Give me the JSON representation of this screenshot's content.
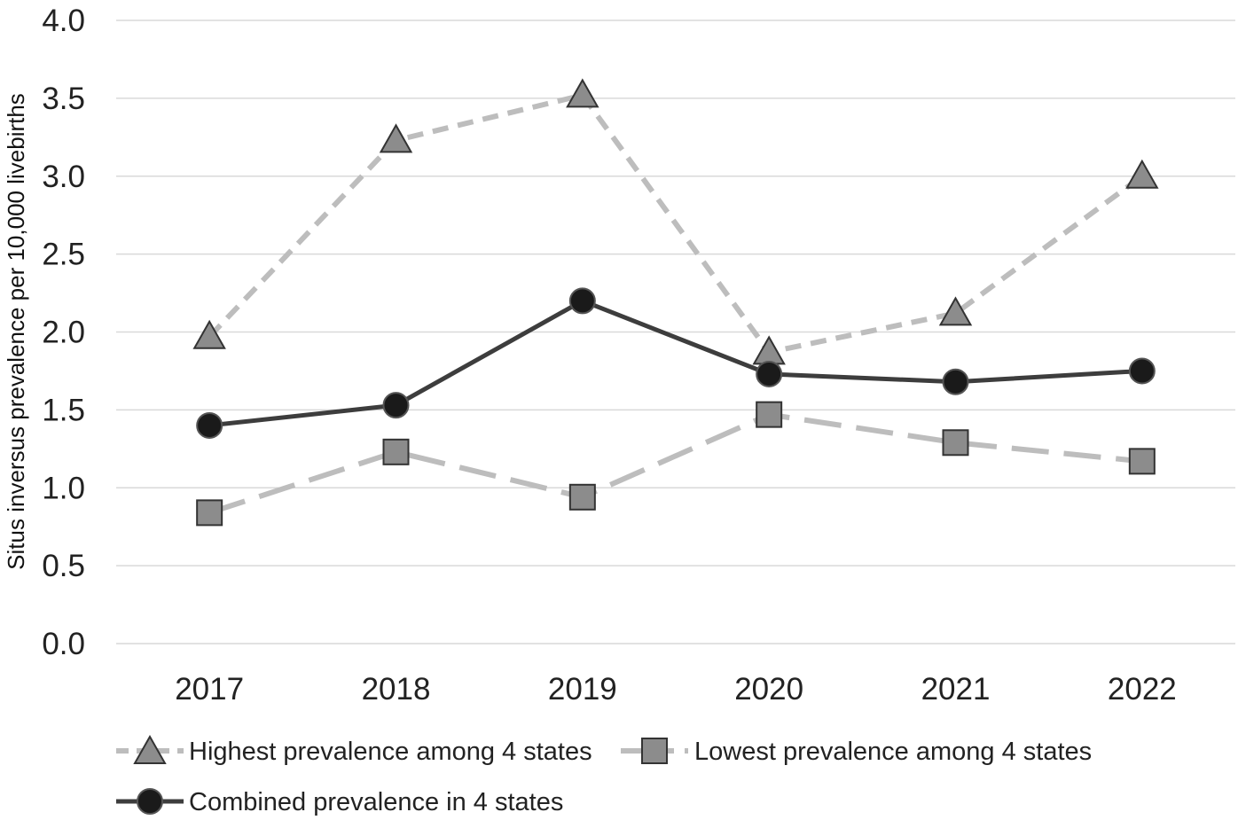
{
  "chart_data": {
    "type": "line",
    "title": "",
    "xlabel": "",
    "ylabel": "Situs inversus prevalence per 10,000 livebirths",
    "categories": [
      "2017",
      "2018",
      "2019",
      "2020",
      "2021",
      "2022"
    ],
    "ylim": [
      0.0,
      4.0
    ],
    "yticks": [
      "0.0",
      "0.5",
      "1.0",
      "1.5",
      "2.0",
      "2.5",
      "3.0",
      "3.5",
      "4.0"
    ],
    "grid": true,
    "legend_position": "bottom",
    "series": [
      {
        "name": "Highest prevalence among 4 states",
        "values": [
          1.97,
          3.23,
          3.52,
          1.87,
          2.12,
          3.0
        ],
        "marker": "triangle",
        "line_style": "dashed",
        "line_color": "#bdbdbd",
        "marker_fill": "#8c8c8c",
        "marker_stroke": "#333333"
      },
      {
        "name": "Lowest prevalence among 4 states",
        "values": [
          0.84,
          1.23,
          0.94,
          1.47,
          1.29,
          1.17
        ],
        "marker": "square",
        "line_style": "long-dashed",
        "line_color": "#bdbdbd",
        "marker_fill": "#8c8c8c",
        "marker_stroke": "#333333"
      },
      {
        "name": "Combined prevalence in 4 states",
        "values": [
          1.4,
          1.53,
          2.2,
          1.73,
          1.68,
          1.75
        ],
        "marker": "circle",
        "line_style": "solid",
        "line_color": "#3d3d3d",
        "marker_fill": "#1a1a1a",
        "marker_stroke": "#555555"
      }
    ]
  }
}
